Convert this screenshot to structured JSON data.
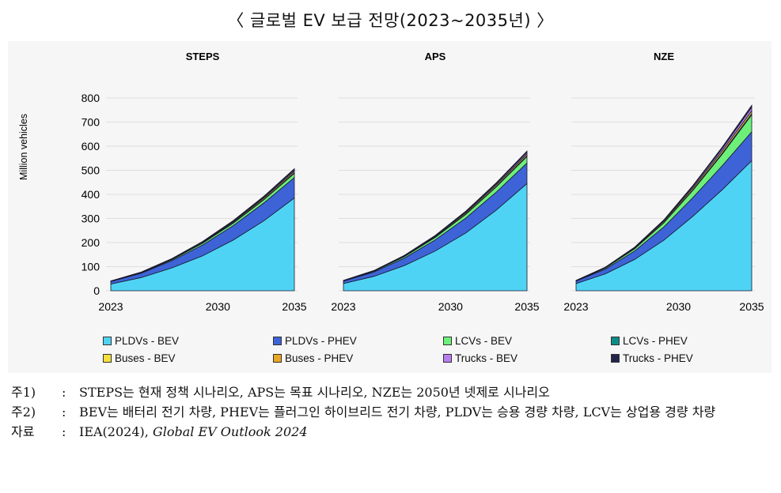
{
  "title": "〈 글로벌 EV 보급 전망(2023~2035년) 〉",
  "chart_data": [
    {
      "type": "area",
      "title": "STEPS",
      "ylabel": "Million vehicles",
      "x": [
        2023,
        2025,
        2027,
        2029,
        2031,
        2033,
        2035
      ],
      "xticks": [
        "2023",
        "2030",
        "2035"
      ],
      "yticks": [
        0,
        100,
        200,
        300,
        400,
        500,
        600,
        700,
        800
      ],
      "ylim": [
        0,
        800
      ],
      "stacked": true,
      "series": [
        {
          "name": "PLDVs - BEV",
          "values": [
            28,
            55,
            95,
            145,
            210,
            290,
            385
          ]
        },
        {
          "name": "PLDVs - PHEV",
          "values": [
            10,
            18,
            30,
            45,
            60,
            74,
            85
          ]
        },
        {
          "name": "LCVs - BEV",
          "values": [
            1,
            2,
            4,
            7,
            10,
            13,
            17
          ]
        },
        {
          "name": "LCVs - PHEV",
          "values": [
            0.3,
            0.5,
            1,
            1.5,
            2,
            2.5,
            3
          ]
        },
        {
          "name": "Buses - BEV",
          "values": [
            1,
            1.5,
            2,
            3,
            4,
            5,
            6
          ]
        },
        {
          "name": "Buses - PHEV",
          "values": [
            0.1,
            0.1,
            0.2,
            0.2,
            0.3,
            0.4,
            0.5
          ]
        },
        {
          "name": "Trucks - BEV",
          "values": [
            0.2,
            0.4,
            0.8,
            1.5,
            2.5,
            3.5,
            5
          ]
        },
        {
          "name": "Trucks - PHEV",
          "values": [
            0.2,
            0.4,
            0.8,
            1.5,
            2.5,
            3.5,
            5
          ]
        }
      ]
    },
    {
      "type": "area",
      "title": "APS",
      "x": [
        2023,
        2025,
        2027,
        2029,
        2031,
        2033,
        2035
      ],
      "xticks": [
        "2023",
        "2030",
        "2035"
      ],
      "ylim": [
        0,
        800
      ],
      "stacked": true,
      "series": [
        {
          "name": "PLDVs - BEV",
          "values": [
            30,
            60,
            105,
            165,
            240,
            335,
            445
          ]
        },
        {
          "name": "PLDVs - PHEV",
          "values": [
            10,
            18,
            31,
            46,
            62,
            75,
            85
          ]
        },
        {
          "name": "LCVs - BEV",
          "values": [
            1,
            3,
            6,
            10,
            15,
            21,
            27
          ]
        },
        {
          "name": "LCVs - PHEV",
          "values": [
            0.3,
            0.6,
            1,
            1.5,
            2,
            2.5,
            3
          ]
        },
        {
          "name": "Buses - BEV",
          "values": [
            1,
            1.5,
            2.5,
            3.5,
            5,
            6,
            7
          ]
        },
        {
          "name": "Buses - PHEV",
          "values": [
            0.1,
            0.1,
            0.2,
            0.3,
            0.4,
            0.5,
            0.6
          ]
        },
        {
          "name": "Trucks - BEV",
          "values": [
            0.2,
            0.5,
            1,
            2,
            3.5,
            5,
            7
          ]
        },
        {
          "name": "Trucks - PHEV",
          "values": [
            0.2,
            0.4,
            0.8,
            1.5,
            2.5,
            3.5,
            5
          ]
        }
      ]
    },
    {
      "type": "area",
      "title": "NZE",
      "x": [
        2023,
        2025,
        2027,
        2029,
        2031,
        2033,
        2035
      ],
      "xticks": [
        "2023",
        "2030",
        "2035"
      ],
      "ylim": [
        0,
        800
      ],
      "stacked": true,
      "series": [
        {
          "name": "PLDVs - BEV",
          "values": [
            30,
            70,
            130,
            210,
            310,
            420,
            540
          ]
        },
        {
          "name": "PLDVs - PHEV",
          "values": [
            10,
            20,
            35,
            55,
            78,
            100,
            120
          ]
        },
        {
          "name": "LCVs - BEV",
          "values": [
            1,
            4,
            9,
            17,
            30,
            48,
            70
          ]
        },
        {
          "name": "LCVs - PHEV",
          "values": [
            0.3,
            0.7,
            1.2,
            2,
            3,
            4,
            5
          ]
        },
        {
          "name": "Buses - BEV",
          "values": [
            1,
            2,
            3,
            5,
            7,
            9,
            11
          ]
        },
        {
          "name": "Buses - PHEV",
          "values": [
            0.1,
            0.2,
            0.3,
            0.4,
            0.5,
            0.6,
            0.8
          ]
        },
        {
          "name": "Trucks - BEV",
          "values": [
            0.2,
            0.6,
            1.5,
            3,
            6,
            10,
            15
          ]
        },
        {
          "name": "Trucks - PHEV",
          "values": [
            0.2,
            0.5,
            1,
            2,
            4,
            6,
            8
          ]
        }
      ]
    }
  ],
  "legend": [
    {
      "label": "PLDVs - BEV",
      "color": "#4fd3f5"
    },
    {
      "label": "PLDVs - PHEV",
      "color": "#3d63d6"
    },
    {
      "label": "LCVs - BEV",
      "color": "#6cf07a"
    },
    {
      "label": "LCVs - PHEV",
      "color": "#0f8c86"
    },
    {
      "label": "Buses - BEV",
      "color": "#f3e03c"
    },
    {
      "label": "Buses - PHEV",
      "color": "#e7a623"
    },
    {
      "label": "Trucks - BEV",
      "color": "#b77ef0"
    },
    {
      "label": "Trucks - PHEV",
      "color": "#22254a"
    }
  ],
  "notes": [
    {
      "key": "주1)",
      "text": "STEPS는 현재 정책 시나리오, APS는 목표 시나리오, NZE는 2050년 넷제로 시나리오"
    },
    {
      "key": "주2)",
      "text": "BEV는 배터리 전기 차량, PHEV는 플러그인 하이브리드 전기 차량, PLDV는 승용 경량 차량, LCV는 상업용 경량 차량"
    },
    {
      "key": "자료",
      "text_plain": "IEA(2024), ",
      "text_italic": "Global EV Outlook 2024"
    }
  ]
}
